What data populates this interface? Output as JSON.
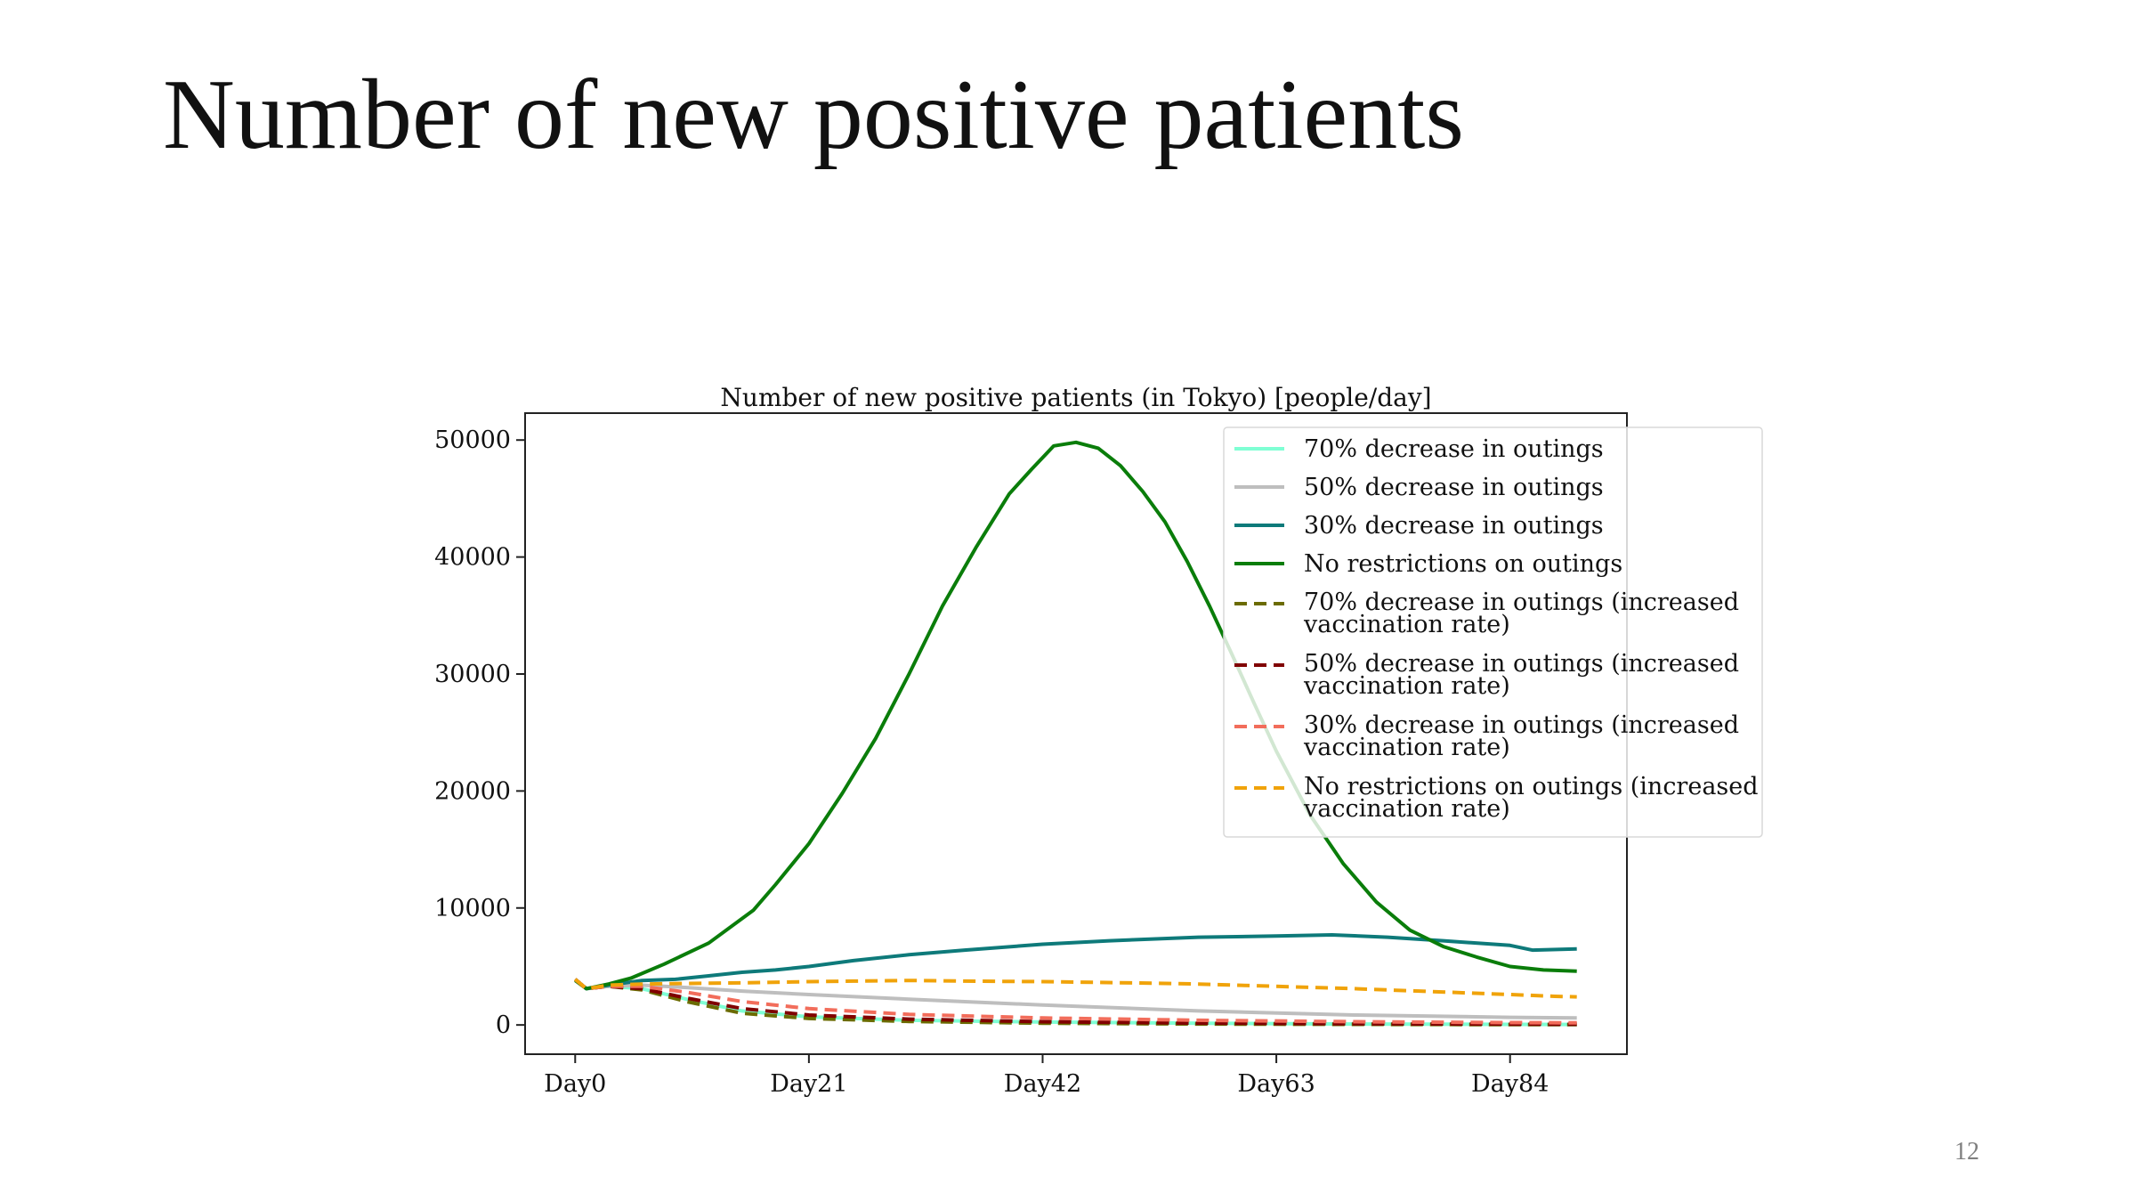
{
  "slide": {
    "title": "Number of new positive patients",
    "page_number": "12"
  },
  "chart_data": {
    "type": "line",
    "title": "Number of new positive patients (in Tokyo) [people/day]",
    "xlabel": "",
    "ylabel": "",
    "x_ticks": [
      "Day0",
      "Day21",
      "Day42",
      "Day63",
      "Day84"
    ],
    "y_ticks": [
      "0",
      "10000",
      "20000",
      "30000",
      "40000",
      "50000"
    ],
    "xlim": [
      -4.5,
      94.5
    ],
    "ylim": [
      -2500,
      52300
    ],
    "grid": false,
    "legend_position": "upper-right",
    "series": [
      {
        "name": "70% decrease in outings",
        "color": "#7fffd4",
        "style": "solid",
        "points": [
          [
            0,
            3900
          ],
          [
            1,
            3100
          ],
          [
            3,
            3300
          ],
          [
            6,
            3100
          ],
          [
            10,
            2200
          ],
          [
            15,
            1200
          ],
          [
            21,
            700
          ],
          [
            30,
            400
          ],
          [
            42,
            250
          ],
          [
            56,
            150
          ],
          [
            70,
            80
          ],
          [
            84,
            50
          ],
          [
            90,
            40
          ]
        ]
      },
      {
        "name": "50% decrease in outings",
        "color": "#bebebe",
        "style": "solid",
        "points": [
          [
            0,
            3900
          ],
          [
            1,
            3100
          ],
          [
            3,
            3300
          ],
          [
            6,
            3400
          ],
          [
            10,
            3200
          ],
          [
            15,
            2900
          ],
          [
            21,
            2600
          ],
          [
            30,
            2200
          ],
          [
            42,
            1700
          ],
          [
            56,
            1200
          ],
          [
            70,
            850
          ],
          [
            84,
            650
          ],
          [
            90,
            600
          ]
        ]
      },
      {
        "name": "30% decrease in outings",
        "color": "#0e7a7a",
        "style": "solid",
        "points": [
          [
            0,
            3900
          ],
          [
            1,
            3100
          ],
          [
            3,
            3400
          ],
          [
            6,
            3800
          ],
          [
            9,
            3900
          ],
          [
            12,
            4200
          ],
          [
            15,
            4500
          ],
          [
            18,
            4700
          ],
          [
            21,
            5000
          ],
          [
            25,
            5500
          ],
          [
            30,
            6000
          ],
          [
            35,
            6400
          ],
          [
            42,
            6900
          ],
          [
            48,
            7200
          ],
          [
            56,
            7500
          ],
          [
            63,
            7600
          ],
          [
            68,
            7700
          ],
          [
            73,
            7500
          ],
          [
            78,
            7200
          ],
          [
            84,
            6800
          ],
          [
            86,
            6400
          ],
          [
            90,
            6500
          ]
        ]
      },
      {
        "name": "No restrictions on outings",
        "color": "#0a7d0a",
        "style": "solid",
        "points": [
          [
            0,
            3800
          ],
          [
            1,
            3100
          ],
          [
            3,
            3500
          ],
          [
            5,
            4000
          ],
          [
            8,
            5200
          ],
          [
            12,
            7000
          ],
          [
            16,
            9800
          ],
          [
            18,
            12000
          ],
          [
            21,
            15500
          ],
          [
            24,
            19800
          ],
          [
            27,
            24500
          ],
          [
            30,
            30000
          ],
          [
            33,
            35800
          ],
          [
            36,
            40800
          ],
          [
            39,
            45400
          ],
          [
            41,
            47500
          ],
          [
            43,
            49500
          ],
          [
            45,
            49800
          ],
          [
            47,
            49300
          ],
          [
            49,
            47800
          ],
          [
            51,
            45600
          ],
          [
            53,
            43000
          ],
          [
            55,
            39600
          ],
          [
            57,
            35800
          ],
          [
            59,
            31700
          ],
          [
            61,
            27500
          ],
          [
            63,
            23400
          ],
          [
            66,
            18000
          ],
          [
            69,
            13800
          ],
          [
            72,
            10500
          ],
          [
            75,
            8100
          ],
          [
            78,
            6700
          ],
          [
            81,
            5800
          ],
          [
            84,
            5000
          ],
          [
            87,
            4700
          ],
          [
            90,
            4600
          ]
        ]
      },
      {
        "name": "70% decrease in outings (increased vaccination rate)",
        "color": "#6b6b00",
        "style": "dashed",
        "points": [
          [
            0,
            3900
          ],
          [
            1,
            3100
          ],
          [
            3,
            3300
          ],
          [
            6,
            3000
          ],
          [
            10,
            2000
          ],
          [
            15,
            1000
          ],
          [
            21,
            550
          ],
          [
            30,
            300
          ],
          [
            42,
            150
          ],
          [
            56,
            80
          ],
          [
            70,
            50
          ],
          [
            84,
            30
          ],
          [
            90,
            25
          ]
        ]
      },
      {
        "name": "50% decrease in outings (increased vaccination rate)",
        "color": "#800000",
        "style": "dashed",
        "points": [
          [
            0,
            3900
          ],
          [
            1,
            3100
          ],
          [
            3,
            3300
          ],
          [
            6,
            3100
          ],
          [
            10,
            2300
          ],
          [
            15,
            1400
          ],
          [
            21,
            850
          ],
          [
            30,
            500
          ],
          [
            42,
            280
          ],
          [
            56,
            160
          ],
          [
            70,
            100
          ],
          [
            84,
            70
          ],
          [
            90,
            60
          ]
        ]
      },
      {
        "name": "30% decrease in outings (increased vaccination rate)",
        "color": "#f26d5b",
        "style": "dashed",
        "points": [
          [
            0,
            3900
          ],
          [
            1,
            3100
          ],
          [
            3,
            3300
          ],
          [
            6,
            3300
          ],
          [
            10,
            2800
          ],
          [
            15,
            2000
          ],
          [
            21,
            1400
          ],
          [
            30,
            900
          ],
          [
            42,
            600
          ],
          [
            56,
            400
          ],
          [
            70,
            280
          ],
          [
            84,
            200
          ],
          [
            90,
            180
          ]
        ]
      },
      {
        "name": "No restrictions on outings (increased vaccination rate)",
        "color": "#f0a30a",
        "style": "dashed",
        "points": [
          [
            0,
            3900
          ],
          [
            1,
            3100
          ],
          [
            3,
            3400
          ],
          [
            6,
            3500
          ],
          [
            10,
            3550
          ],
          [
            15,
            3600
          ],
          [
            21,
            3700
          ],
          [
            25,
            3750
          ],
          [
            30,
            3800
          ],
          [
            35,
            3750
          ],
          [
            42,
            3700
          ],
          [
            50,
            3600
          ],
          [
            56,
            3500
          ],
          [
            63,
            3300
          ],
          [
            70,
            3100
          ],
          [
            77,
            2850
          ],
          [
            84,
            2600
          ],
          [
            88,
            2450
          ],
          [
            90,
            2400
          ]
        ]
      }
    ]
  }
}
